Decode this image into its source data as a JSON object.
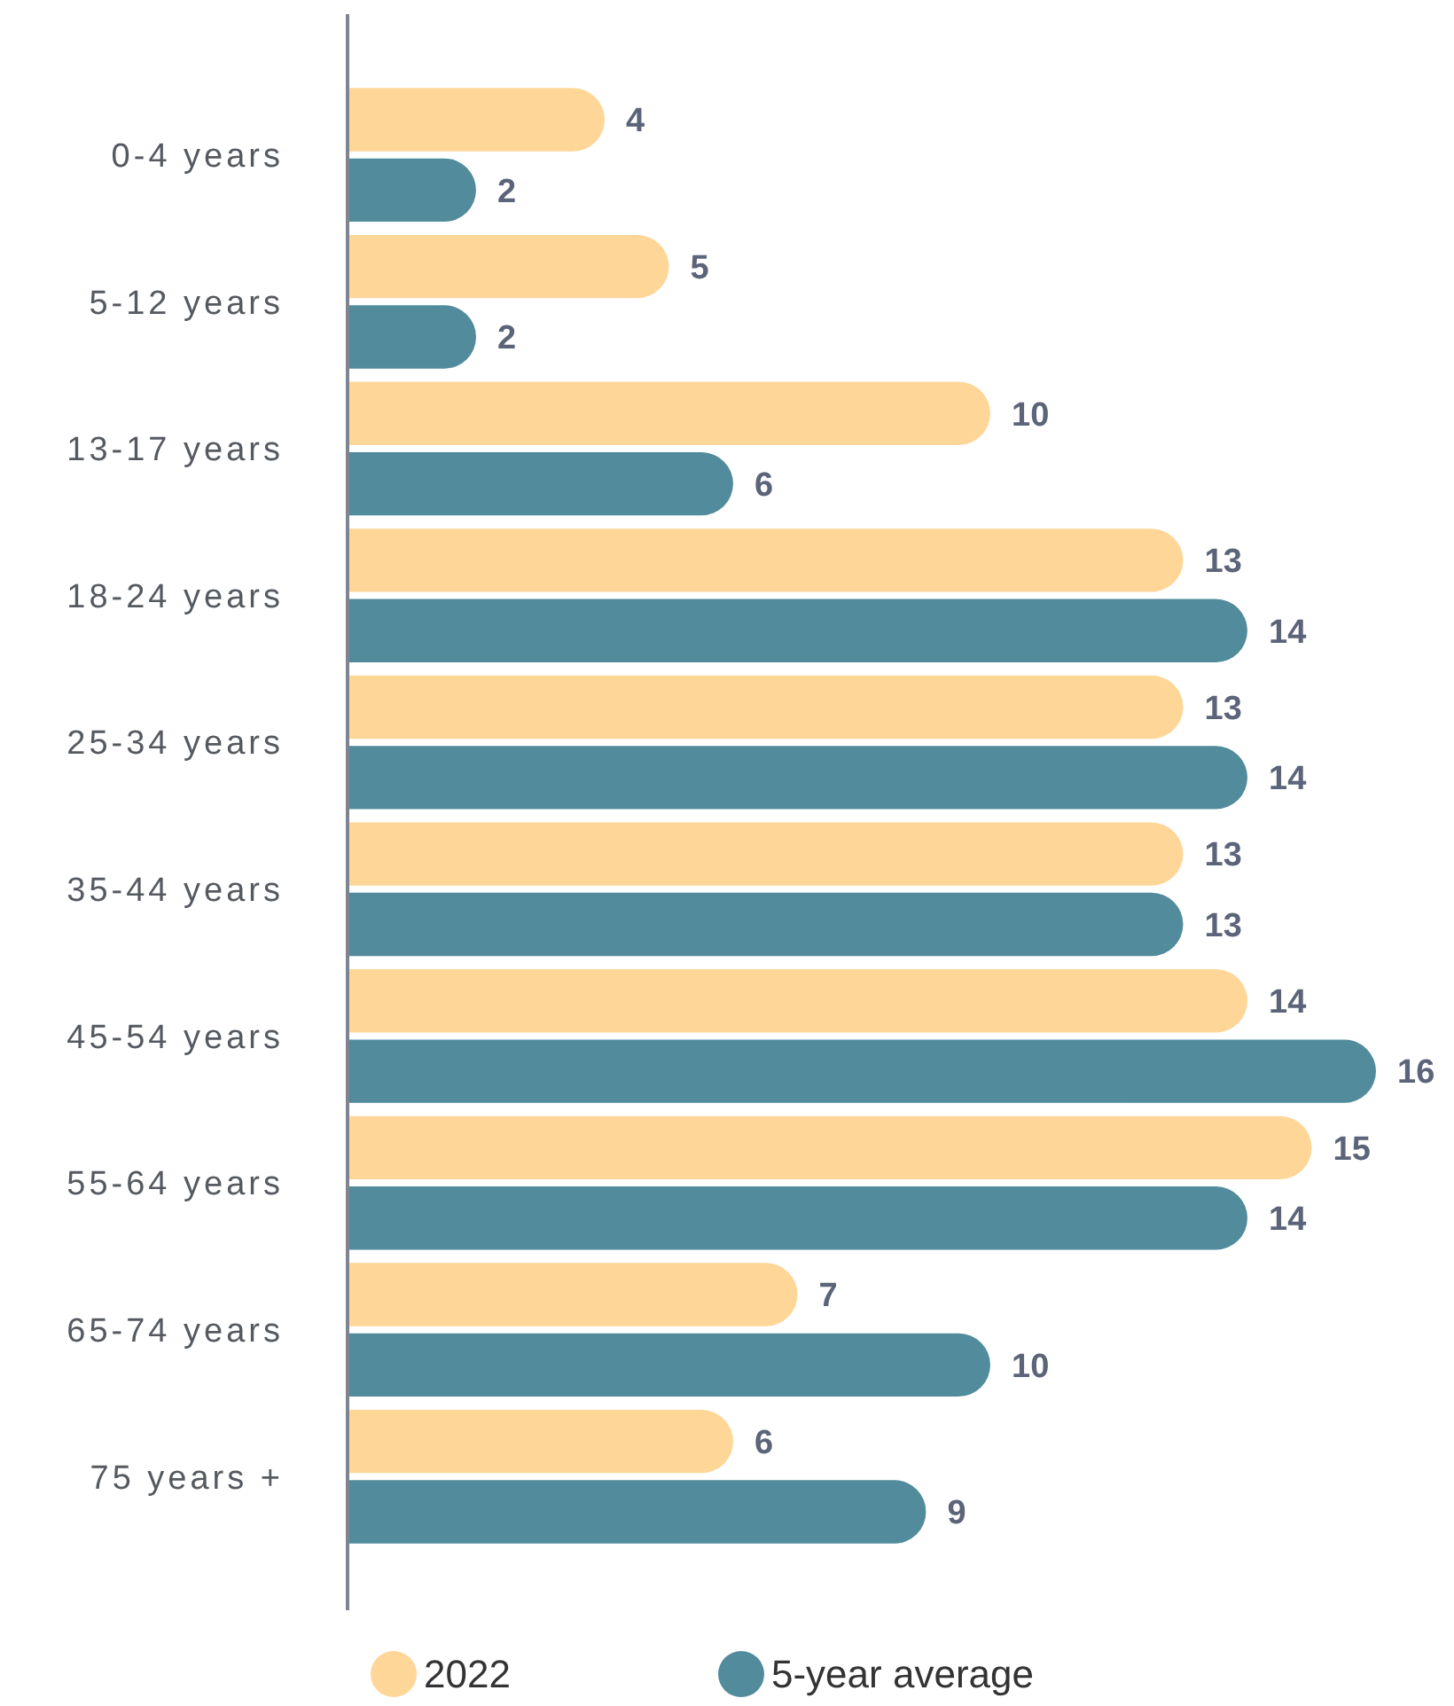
{
  "chart_data": {
    "type": "bar",
    "orientation": "horizontal",
    "data_labels": true,
    "legend": "bottom",
    "categories": [
      "0-4 years",
      "5-12 years",
      "13-17 years",
      "18-24 years",
      "25-34 years",
      "35-44 years",
      "45-54 years",
      "55-64 years",
      "65-74 years",
      "75 years +"
    ],
    "series": [
      {
        "name": "2022",
        "color": "#fed698",
        "values": [
          4,
          5,
          10,
          13,
          13,
          13,
          14,
          15,
          7,
          6
        ]
      },
      {
        "name": "5-year average",
        "color": "#528b9b",
        "values": [
          2,
          2,
          6,
          14,
          14,
          13,
          16,
          14,
          10,
          9
        ]
      }
    ]
  }
}
